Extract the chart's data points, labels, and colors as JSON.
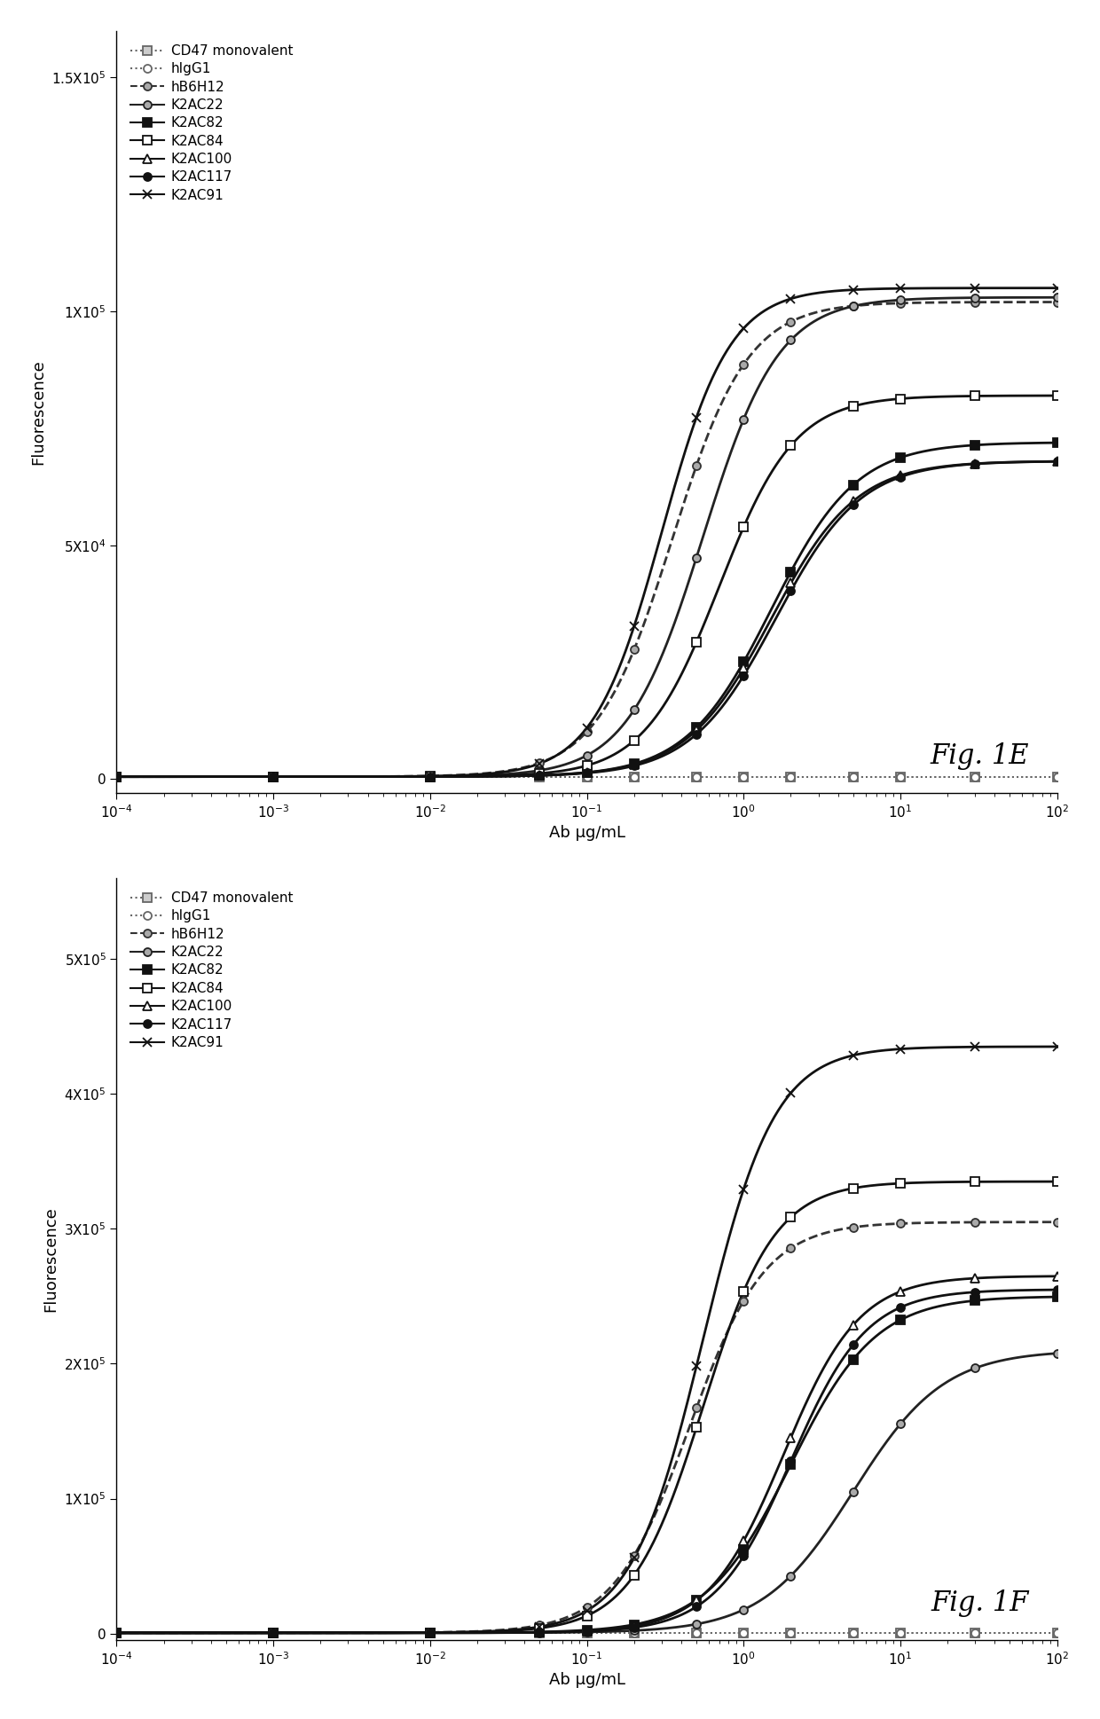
{
  "fig_e": {
    "title": "Fig. 1E",
    "xlabel": "Ab μg/mL",
    "ylabel": "Fluorescence",
    "xlim": [
      0.0001,
      100.0
    ],
    "ylim": [
      -3000,
      160000
    ],
    "yticks": [
      0,
      50000,
      100000,
      150000
    ],
    "ytick_labels": [
      "0",
      "5X10$^4$",
      "1X10$^5$",
      "1.5X10$^5$"
    ],
    "series": [
      {
        "name": "CD47 monovalent",
        "color": "#666666",
        "linestyle": "dotted",
        "marker": "s",
        "markerfacecolor": "#cccccc",
        "markeredgecolor": "#666666",
        "flat": true,
        "flat_value": 500
      },
      {
        "name": "hIgG1",
        "color": "#666666",
        "linestyle": "dotted",
        "marker": "o",
        "markerfacecolor": "white",
        "markeredgecolor": "#666666",
        "flat": true,
        "flat_value": 500
      },
      {
        "name": "hB6H12",
        "color": "#333333",
        "linestyle": "dashed",
        "marker": "o",
        "markerfacecolor": "#aaaaaa",
        "markeredgecolor": "#333333",
        "bottom": 500,
        "top": 102000,
        "ec50": 0.35,
        "hill": 1.8
      },
      {
        "name": "K2AC22",
        "color": "#222222",
        "linestyle": "solid",
        "marker": "o",
        "markerfacecolor": "#aaaaaa",
        "markeredgecolor": "#222222",
        "bottom": 500,
        "top": 103000,
        "ec50": 0.55,
        "hill": 1.8
      },
      {
        "name": "K2AC82",
        "color": "#111111",
        "linestyle": "solid",
        "marker": "s",
        "markerfacecolor": "#111111",
        "markeredgecolor": "#111111",
        "bottom": 500,
        "top": 72000,
        "ec50": 1.5,
        "hill": 1.6
      },
      {
        "name": "K2AC84",
        "color": "#111111",
        "linestyle": "solid",
        "marker": "s",
        "markerfacecolor": "white",
        "markeredgecolor": "#111111",
        "bottom": 500,
        "top": 82000,
        "ec50": 0.7,
        "hill": 1.8
      },
      {
        "name": "K2AC100",
        "color": "#111111",
        "linestyle": "solid",
        "marker": "^",
        "markerfacecolor": "white",
        "markeredgecolor": "#111111",
        "bottom": 500,
        "top": 68000,
        "ec50": 1.5,
        "hill": 1.6
      },
      {
        "name": "K2AC117",
        "color": "#111111",
        "linestyle": "solid",
        "marker": "o",
        "markerfacecolor": "#111111",
        "markeredgecolor": "#111111",
        "bottom": 500,
        "top": 68000,
        "ec50": 1.6,
        "hill": 1.6
      },
      {
        "name": "K2AC91",
        "color": "#111111",
        "linestyle": "solid",
        "marker": "x",
        "markerfacecolor": "#111111",
        "markeredgecolor": "#111111",
        "bottom": 500,
        "top": 105000,
        "ec50": 0.3,
        "hill": 2.0
      }
    ]
  },
  "fig_f": {
    "title": "Fig. 1F",
    "xlabel": "Ab μg/mL",
    "ylabel": "Fluorescence",
    "xlim": [
      0.0001,
      100.0
    ],
    "ylim": [
      -5000,
      560000
    ],
    "yticks": [
      0,
      100000,
      200000,
      300000,
      400000,
      500000
    ],
    "ytick_labels": [
      "0",
      "1X10$^5$",
      "2X10$^5$",
      "3X10$^5$",
      "4X10$^5$",
      "5X10$^5$"
    ],
    "series": [
      {
        "name": "CD47 monovalent",
        "color": "#666666",
        "linestyle": "dotted",
        "marker": "s",
        "markerfacecolor": "#cccccc",
        "markeredgecolor": "#666666",
        "flat": true,
        "flat_value": 500
      },
      {
        "name": "hIgG1",
        "color": "#666666",
        "linestyle": "dotted",
        "marker": "o",
        "markerfacecolor": "white",
        "markeredgecolor": "#666666",
        "flat": true,
        "flat_value": 500
      },
      {
        "name": "hB6H12",
        "color": "#333333",
        "linestyle": "dashed",
        "marker": "o",
        "markerfacecolor": "#aaaaaa",
        "markeredgecolor": "#333333",
        "bottom": 500,
        "top": 305000,
        "ec50": 0.45,
        "hill": 1.8
      },
      {
        "name": "K2AC22",
        "color": "#222222",
        "linestyle": "solid",
        "marker": "o",
        "markerfacecolor": "#aaaaaa",
        "markeredgecolor": "#222222",
        "bottom": 500,
        "top": 210000,
        "ec50": 5.0,
        "hill": 1.5
      },
      {
        "name": "K2AC82",
        "color": "#111111",
        "linestyle": "solid",
        "marker": "s",
        "markerfacecolor": "#111111",
        "markeredgecolor": "#111111",
        "bottom": 500,
        "top": 250000,
        "ec50": 2.0,
        "hill": 1.6
      },
      {
        "name": "K2AC84",
        "color": "#111111",
        "linestyle": "solid",
        "marker": "s",
        "markerfacecolor": "white",
        "markeredgecolor": "#111111",
        "bottom": 500,
        "top": 335000,
        "ec50": 0.55,
        "hill": 1.9
      },
      {
        "name": "K2AC100",
        "color": "#111111",
        "linestyle": "solid",
        "marker": "^",
        "markerfacecolor": "white",
        "markeredgecolor": "#111111",
        "bottom": 500,
        "top": 265000,
        "ec50": 1.8,
        "hill": 1.8
      },
      {
        "name": "K2AC117",
        "color": "#111111",
        "linestyle": "solid",
        "marker": "o",
        "markerfacecolor": "#111111",
        "markeredgecolor": "#111111",
        "bottom": 500,
        "top": 255000,
        "ec50": 2.0,
        "hill": 1.8
      },
      {
        "name": "K2AC91",
        "color": "#111111",
        "linestyle": "solid",
        "marker": "x",
        "markerfacecolor": "#111111",
        "markeredgecolor": "#111111",
        "bottom": 500,
        "top": 435000,
        "ec50": 0.55,
        "hill": 1.9
      }
    ]
  }
}
